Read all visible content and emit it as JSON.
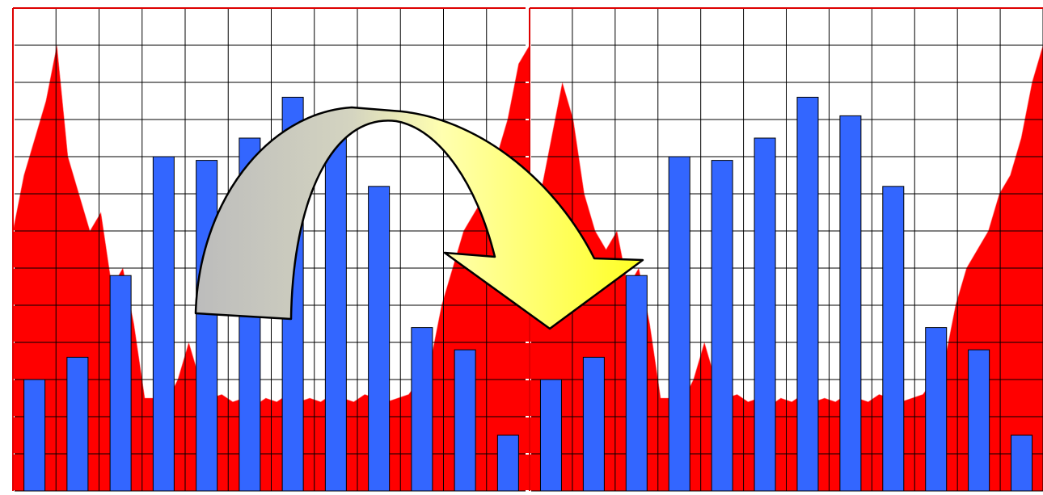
{
  "chart_data": [
    {
      "type": "bar",
      "categories": [
        null,
        null,
        null,
        null,
        null,
        null,
        null,
        null,
        null,
        null,
        null,
        null
      ],
      "values": [
        3.0,
        3.6,
        5.8,
        9.0,
        8.9,
        9.5,
        10.6,
        10.1,
        8.2,
        4.4,
        3.8,
        1.5
      ],
      "color": "#3366ff",
      "area": {
        "color": "#ff0000",
        "values": [
          7,
          8.5,
          9.5,
          10.5,
          12,
          9,
          8,
          7,
          7.5,
          5.5,
          6,
          4.5,
          2.5,
          2.5,
          2.4,
          3,
          4,
          3,
          2.5,
          2.6,
          2.4,
          2.5,
          2.3,
          2.5,
          2.4,
          2.6,
          2.4,
          2.5,
          2.4,
          2.6,
          2.5,
          2.4,
          2.6,
          2.5,
          2.4,
          2.5,
          2.6,
          3,
          3.5,
          5,
          6,
          7,
          7.5,
          8,
          9,
          10,
          11.5,
          12
        ]
      },
      "ylim": [
        0,
        13
      ],
      "yticks": [
        0,
        1,
        2,
        3,
        4,
        5,
        6,
        7,
        8,
        9,
        10,
        11,
        12,
        13
      ],
      "grid": true,
      "frame_color": "#dd0000"
    },
    {
      "type": "bar",
      "categories": [
        null,
        null,
        null,
        null,
        null,
        null,
        null,
        null,
        null,
        null,
        null,
        null
      ],
      "values": [
        3.0,
        3.6,
        5.8,
        9.0,
        8.9,
        9.5,
        10.6,
        10.1,
        8.2,
        4.4,
        3.8,
        1.5
      ],
      "color": "#3366ff",
      "area": {
        "color": "#ff0000",
        "values": [
          7,
          8,
          9.5,
          11,
          10,
          8,
          7,
          6.5,
          7,
          5.5,
          6,
          4.5,
          2.5,
          2.5,
          2.4,
          3,
          4,
          3,
          2.5,
          2.6,
          2.4,
          2.5,
          2.3,
          2.5,
          2.4,
          2.6,
          2.4,
          2.5,
          2.4,
          2.6,
          2.5,
          2.4,
          2.6,
          2.5,
          2.4,
          2.5,
          2.6,
          3,
          3.5,
          5,
          6,
          6.5,
          7,
          8,
          8.5,
          9.5,
          11,
          12
        ]
      },
      "ylim": [
        0,
        13
      ],
      "yticks": [
        0,
        1,
        2,
        3,
        4,
        5,
        6,
        7,
        8,
        9,
        10,
        11,
        12,
        13
      ],
      "grid": true,
      "frame_color": "#dd0000"
    }
  ]
}
